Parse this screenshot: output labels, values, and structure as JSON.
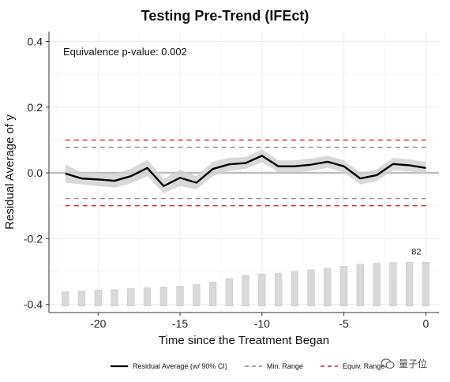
{
  "chart_data": {
    "type": "line",
    "title": "Testing Pre-Trend (IFEct)",
    "xlabel": "Time since the Treatment Began",
    "ylabel": "Residual Average of y",
    "xlim": [
      -23,
      0.8
    ],
    "ylim": [
      -0.425,
      0.43
    ],
    "x_ticks": [
      -20,
      -15,
      -10,
      -5,
      0
    ],
    "x_tick_labels": [
      "-20",
      "-15",
      "-10",
      "-5",
      "0"
    ],
    "y_ticks": [
      0.4,
      0.2,
      0.0,
      -0.2,
      -0.4
    ],
    "y_tick_labels": [
      "0.4",
      "0.2",
      "0.0",
      "-0.2",
      "-0.4"
    ],
    "grid": true,
    "annotation": "Equivalence p-value: 0.002",
    "bar_label": "82",
    "x": [
      -22,
      -21,
      -20,
      -19,
      -18,
      -17,
      -16,
      -15,
      -14,
      -13,
      -12,
      -11,
      -10,
      -9,
      -8,
      -7,
      -6,
      -5,
      -4,
      -3,
      -2,
      -1,
      0
    ],
    "series": [
      {
        "name": "Residual Average (w/ 90% CI)",
        "color": "#000000",
        "values": [
          -0.002,
          -0.017,
          -0.02,
          -0.024,
          -0.01,
          0.015,
          -0.04,
          -0.015,
          -0.03,
          0.012,
          0.026,
          0.03,
          0.052,
          0.02,
          0.02,
          0.025,
          0.034,
          0.02,
          -0.017,
          -0.007,
          0.027,
          0.023,
          0.015
        ],
        "ci_lower": [
          -0.03,
          -0.035,
          -0.04,
          -0.045,
          -0.032,
          -0.01,
          -0.062,
          -0.04,
          -0.05,
          -0.01,
          0.006,
          0.012,
          0.032,
          0.002,
          0.002,
          0.006,
          0.016,
          0.002,
          -0.035,
          -0.025,
          0.008,
          0.005,
          -0.003
        ],
        "ci_upper": [
          0.026,
          0.001,
          0.0,
          -0.003,
          0.012,
          0.04,
          -0.018,
          0.01,
          -0.01,
          0.034,
          0.046,
          0.048,
          0.072,
          0.038,
          0.038,
          0.044,
          0.052,
          0.038,
          0.001,
          0.011,
          0.046,
          0.041,
          0.033
        ]
      }
    ],
    "reference_lines": [
      {
        "name": "Min. Range",
        "color": "#8c8c8c",
        "values": [
          0.078,
          -0.078
        ]
      },
      {
        "name": "Equiv. Range",
        "color": "#d62728",
        "values": [
          0.1,
          -0.1
        ]
      }
    ],
    "count_bars": {
      "x": [
        -22,
        -21,
        -20,
        -19,
        -18,
        -17,
        -16,
        -15,
        -14,
        -13,
        -12,
        -11,
        -10,
        -9,
        -8,
        -7,
        -6,
        -5,
        -4,
        -3,
        -2,
        -1,
        0
      ],
      "top_values": [
        -0.362,
        -0.36,
        -0.357,
        -0.355,
        -0.352,
        -0.35,
        -0.348,
        -0.345,
        -0.34,
        -0.332,
        -0.322,
        -0.312,
        -0.308,
        -0.305,
        -0.3,
        -0.295,
        -0.29,
        -0.284,
        -0.278,
        -0.275,
        -0.273,
        -0.272,
        -0.272
      ],
      "base_value": -0.405,
      "color": "#d9d9d9"
    }
  },
  "legend": {
    "items": [
      {
        "label": "Residual Average (w/ 90% CI)",
        "color": "#000000",
        "style": "solid"
      },
      {
        "label": "Min. Range",
        "color": "#8c8c8c",
        "style": "dashed"
      },
      {
        "label": "Equiv. Range",
        "color": "#d62728",
        "style": "dashed"
      }
    ]
  },
  "watermark": {
    "text": "量子位"
  }
}
